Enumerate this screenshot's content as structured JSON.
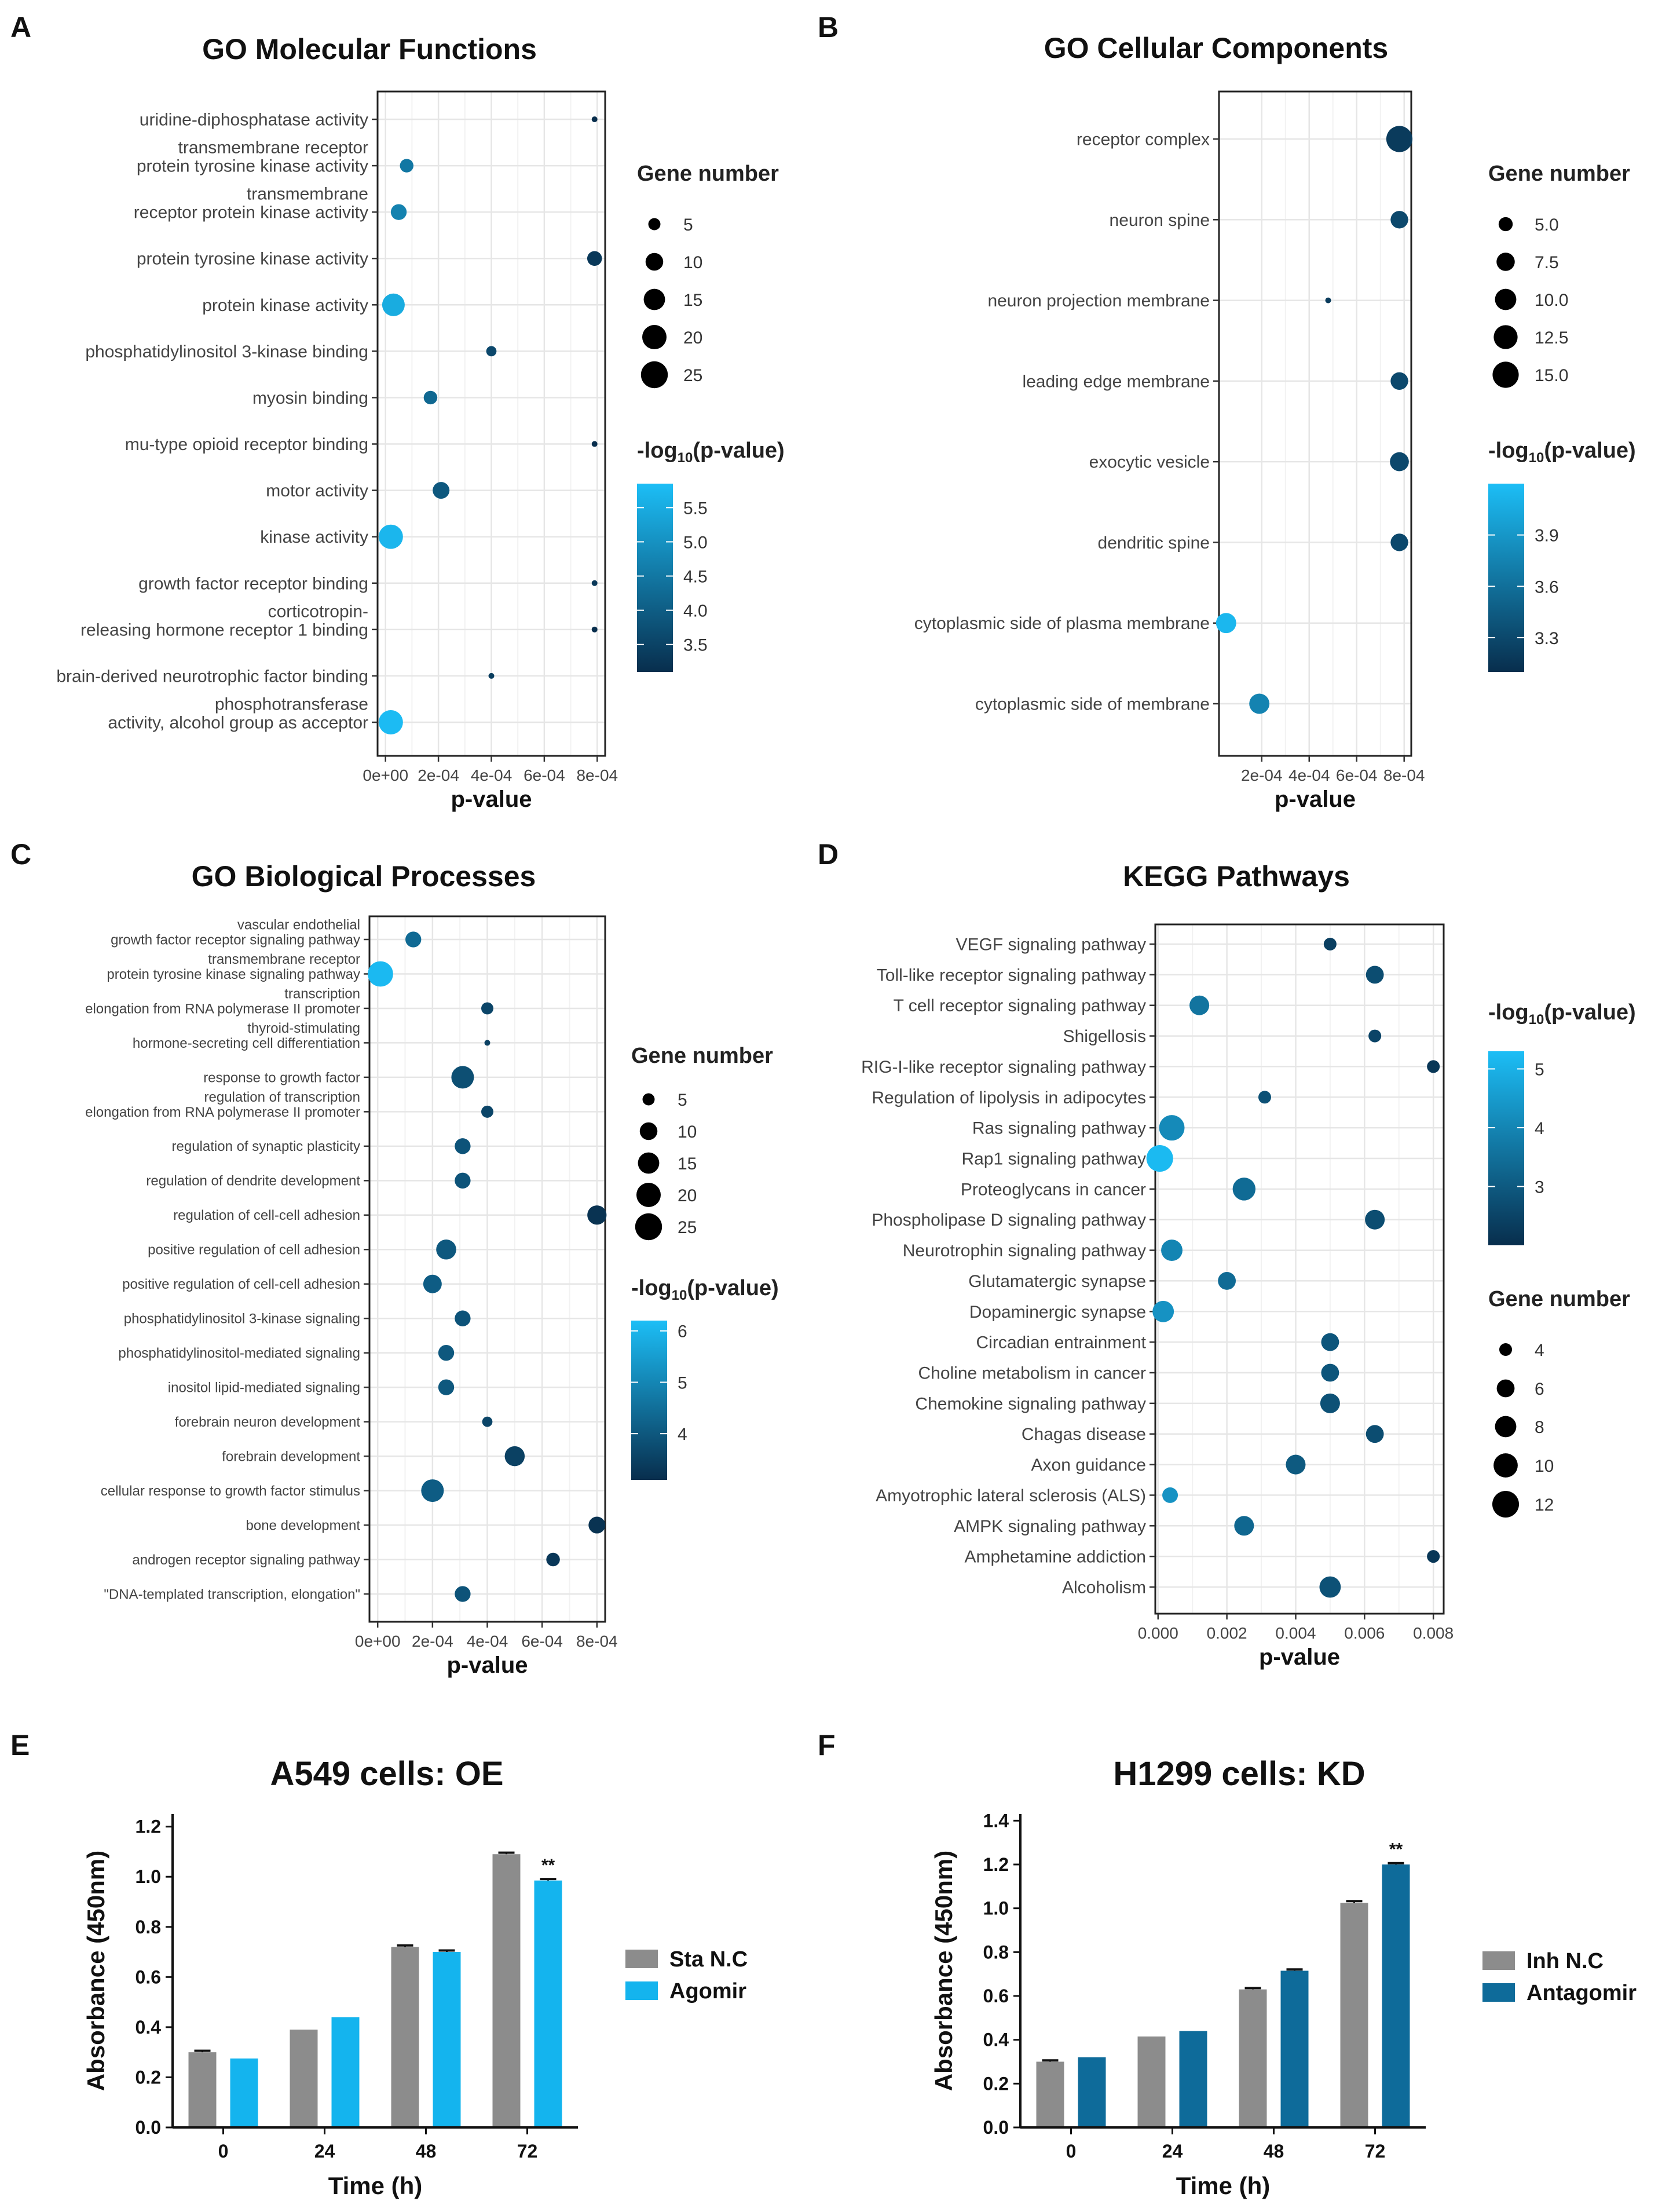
{
  "figure": {
    "panel_letters": [
      "A",
      "B",
      "C",
      "D",
      "E",
      "F"
    ]
  },
  "chart_data": [
    {
      "panel": "A",
      "type": "scatter",
      "title": "GO Molecular Functions",
      "xlabel": "p-value",
      "ylabel": "",
      "x_ticks": [
        "0e+00",
        "2e-04",
        "4e-04",
        "6e-04",
        "8e-04"
      ],
      "x_tick_values": [
        0,
        0.0002,
        0.0004,
        0.0006,
        0.0008
      ],
      "xlim": [
        -3e-05,
        0.00083
      ],
      "grid": true,
      "size_legend": {
        "title": "Gene number",
        "values": [
          5,
          10,
          15,
          20,
          25
        ]
      },
      "color_legend": {
        "title_main": "-log",
        "title_sub": "10",
        "title_tail": "(p-value)",
        "values": [
          5.5,
          5.0,
          4.5,
          4.0,
          3.5
        ],
        "range": [
          3.1,
          5.85
        ],
        "labels": [
          "5.5",
          "5.0",
          "4.5",
          "4.0",
          "3.5"
        ]
      },
      "size_range": [
        3,
        27
      ],
      "categories": [
        "uridine-diphosphatase activity",
        "transmembrane receptor protein tyrosine kinase activity",
        "transmembrane receptor protein kinase activity",
        "protein tyrosine kinase activity",
        "protein kinase activity",
        "phosphatidylinositol 3-kinase binding",
        "myosin binding",
        "mu-type opioid receptor binding",
        "motor activity",
        "kinase activity",
        "growth factor receptor binding",
        "corticotropin-releasing hormone receptor 1 binding",
        "brain-derived neurotrophic factor binding",
        "phosphotransferase activity, alcohol group as acceptor"
      ],
      "category_lines": [
        [
          "uridine-diphosphatase activity"
        ],
        [
          "transmembrane receptor",
          "protein tyrosine kinase activity"
        ],
        [
          "transmembrane",
          "receptor protein kinase activity"
        ],
        [
          "protein tyrosine kinase activity"
        ],
        [
          "protein kinase activity"
        ],
        [
          "phosphatidylinositol 3-kinase binding"
        ],
        [
          "myosin binding"
        ],
        [
          "mu-type opioid receptor binding"
        ],
        [
          "motor activity"
        ],
        [
          "kinase activity"
        ],
        [
          "growth factor receptor binding"
        ],
        [
          "corticotropin-",
          "releasing hormone receptor 1 binding"
        ],
        [
          "brain-derived neurotrophic factor binding"
        ],
        [
          "phosphotransferase",
          "activity, alcohol group as acceptor"
        ]
      ],
      "x": [
        0.00079,
        8e-05,
        5e-05,
        0.00079,
        3e-05,
        0.0004,
        0.00017,
        0.00079,
        0.00021,
        2e-05,
        0.00079,
        0.00079,
        0.0004,
        2e-05
      ],
      "gene_number": [
        3,
        6,
        8,
        7,
        17,
        4,
        6,
        2,
        9,
        20,
        3,
        2,
        2,
        20
      ],
      "log_p": [
        3.1,
        4.5,
        4.7,
        3.3,
        5.5,
        3.6,
        4.2,
        3.1,
        3.9,
        5.7,
        3.3,
        3.1,
        3.4,
        5.8
      ]
    },
    {
      "panel": "B",
      "type": "scatter",
      "title": "GO Cellular Components",
      "xlabel": "p-value",
      "ylabel": "",
      "x_ticks": [
        "2e-04",
        "4e-04",
        "6e-04",
        "8e-04"
      ],
      "x_tick_values": [
        0.0002,
        0.0004,
        0.0006,
        0.0008
      ],
      "xlim": [
        2e-05,
        0.00083
      ],
      "grid": true,
      "size_legend": {
        "title": "Gene number",
        "values": [
          5.0,
          7.5,
          10.0,
          12.5,
          15.0
        ],
        "labels": [
          "5.0",
          "7.5",
          "10.0",
          "12.5",
          "15.0"
        ]
      },
      "color_legend": {
        "title_main": "-log",
        "title_sub": "10",
        "title_tail": "(p-value)",
        "values": [
          3.9,
          3.6,
          3.3
        ],
        "range": [
          3.1,
          4.2
        ],
        "labels": [
          "3.9",
          "3.6",
          "3.3"
        ]
      },
      "size_range": [
        3,
        17
      ],
      "categories": [
        "receptor complex",
        "neuron spine",
        "neuron projection membrane",
        "leading edge membrane",
        "exocytic vesicle",
        "dendritic spine",
        "cytoplasmic side of plasma membrane",
        "cytoplasmic side of membrane"
      ],
      "category_lines": [
        [
          "receptor complex"
        ],
        [
          "neuron spine"
        ],
        [
          "neuron projection membrane"
        ],
        [
          "leading edge membrane"
        ],
        [
          "exocytic vesicle"
        ],
        [
          "dendritic spine"
        ],
        [
          "cytoplasmic side of plasma membrane"
        ],
        [
          "cytoplasmic side of membrane"
        ]
      ],
      "x": [
        0.00078,
        0.00078,
        0.00048,
        0.00078,
        0.00078,
        0.00078,
        5e-05,
        0.00019
      ],
      "gene_number": [
        15,
        7,
        3,
        7,
        8,
        7,
        9,
        9
      ],
      "log_p": [
        3.2,
        3.3,
        3.2,
        3.3,
        3.3,
        3.3,
        4.15,
        3.75
      ]
    },
    {
      "panel": "C",
      "type": "scatter",
      "title": "GO Biological Processes",
      "xlabel": "p-value",
      "ylabel": "",
      "x_ticks": [
        "0e+00",
        "2e-04",
        "4e-04",
        "6e-04",
        "8e-04"
      ],
      "x_tick_values": [
        0,
        0.0002,
        0.0004,
        0.0006,
        0.0008
      ],
      "xlim": [
        -3e-05,
        0.00083
      ],
      "grid": true,
      "size_legend": {
        "title": "Gene number",
        "values": [
          5,
          10,
          15,
          20,
          25
        ]
      },
      "color_legend": {
        "title_main": "-log",
        "title_sub": "10",
        "title_tail": "(p-value)",
        "values": [
          6,
          5,
          4
        ],
        "range": [
          3.1,
          6.2
        ],
        "labels": [
          "6",
          "5",
          "4"
        ]
      },
      "size_range": [
        3,
        27
      ],
      "categories": [
        "vascular endothelial growth factor receptor signaling pathway",
        "transmembrane receptor protein tyrosine kinase signaling pathway",
        "transcription elongation from RNA polymerase II promoter",
        "thyroid-stimulating hormone-secreting cell differentiation",
        "response to growth factor",
        "regulation of transcription elongation from RNA polymerase II promoter",
        "regulation of synaptic plasticity",
        "regulation of dendrite development",
        "regulation of cell-cell adhesion",
        "positive regulation of cell adhesion",
        "positive regulation of cell-cell adhesion",
        "phosphatidylinositol 3-kinase signaling",
        "phosphatidylinositol-mediated signaling",
        "inositol lipid-mediated signaling",
        "forebrain neuron development",
        "forebrain development",
        "cellular response to growth factor stimulus",
        "bone development",
        "androgen receptor signaling pathway",
        "\"DNA-templated transcription, elongation\""
      ],
      "category_lines": [
        [
          "vascular endothelial",
          "growth factor receptor signaling pathway"
        ],
        [
          "transmembrane receptor",
          "protein tyrosine kinase signaling pathway"
        ],
        [
          "transcription",
          "elongation from RNA polymerase II promoter"
        ],
        [
          "thyroid-stimulating",
          "hormone-secreting cell differentiation"
        ],
        [
          "response to growth factor"
        ],
        [
          "regulation of transcription",
          "elongation from RNA polymerase II promoter"
        ],
        [
          "regulation of synaptic plasticity"
        ],
        [
          "regulation of dendrite development"
        ],
        [
          "regulation of cell-cell adhesion"
        ],
        [
          "positive regulation of cell adhesion"
        ],
        [
          "positive regulation of cell-cell adhesion"
        ],
        [
          "phosphatidylinositol 3-kinase signaling"
        ],
        [
          "phosphatidylinositol-mediated signaling"
        ],
        [
          "inositol lipid-mediated signaling"
        ],
        [
          "forebrain neuron development"
        ],
        [
          "forebrain development"
        ],
        [
          "cellular response to growth factor stimulus"
        ],
        [
          "bone development"
        ],
        [
          "androgen receptor signaling pathway"
        ],
        [
          "\"DNA-templated transcription, elongation\""
        ]
      ],
      "x": [
        0.00013,
        1e-05,
        0.0004,
        0.0004,
        0.00031,
        0.0004,
        0.00031,
        0.00031,
        0.0008,
        0.00025,
        0.0002,
        0.00031,
        0.00025,
        0.00025,
        0.0004,
        0.0005,
        0.0002,
        0.0008,
        0.00064,
        0.00031
      ],
      "gene_number": [
        8,
        22,
        5,
        2,
        17,
        5,
        8,
        8,
        12,
        13,
        11,
        8,
        8,
        8,
        4,
        13,
        17,
        9,
        6,
        8
      ],
      "log_p": [
        4.4,
        6.1,
        3.6,
        3.5,
        3.8,
        3.6,
        3.9,
        3.9,
        3.2,
        4.0,
        4.1,
        3.9,
        4.0,
        4.0,
        3.6,
        3.5,
        4.1,
        3.2,
        3.3,
        3.9
      ]
    },
    {
      "panel": "D",
      "type": "scatter",
      "title": "KEGG Pathways",
      "xlabel": "p-value",
      "ylabel": "",
      "x_ticks": [
        "0.000",
        "0.002",
        "0.004",
        "0.006",
        "0.008"
      ],
      "x_tick_values": [
        0,
        0.002,
        0.004,
        0.006,
        0.008
      ],
      "xlim": [
        -8e-05,
        0.0083
      ],
      "grid": true,
      "size_legend": {
        "title": "Gene number",
        "values": [
          4,
          6,
          8,
          10,
          12
        ]
      },
      "color_legend": {
        "title_main": "-log",
        "title_sub": "10",
        "title_tail": "(p-value)",
        "values": [
          5,
          4,
          3
        ],
        "range": [
          2.0,
          5.3
        ],
        "labels": [
          "5",
          "4",
          "3"
        ]
      },
      "size_range": [
        3,
        13
      ],
      "categories": [
        "VEGF signaling pathway",
        "Toll-like receptor signaling pathway",
        "T cell receptor signaling pathway",
        "Shigellosis",
        "RIG-I-like receptor signaling pathway",
        "Regulation of lipolysis in adipocytes",
        "Ras signaling pathway",
        "Rap1 signaling pathway",
        "Proteoglycans in cancer",
        "Phospholipase D signaling pathway",
        "Neurotrophin signaling pathway",
        "Glutamatergic synapse",
        "Dopaminergic synapse",
        "Circadian entrainment",
        "Choline metabolism in cancer",
        "Chemokine signaling pathway",
        "Chagas disease",
        "Axon guidance",
        "Amyotrophic lateral sclerosis (ALS)",
        "AMPK signaling pathway",
        "Amphetamine addiction",
        "Alcoholism"
      ],
      "category_lines": [
        [
          "VEGF signaling pathway"
        ],
        [
          "Toll-like receptor signaling pathway"
        ],
        [
          "T cell receptor signaling pathway"
        ],
        [
          "Shigellosis"
        ],
        [
          "RIG-I-like receptor signaling pathway"
        ],
        [
          "Regulation of lipolysis in adipocytes"
        ],
        [
          "Ras signaling pathway"
        ],
        [
          "Rap1 signaling pathway"
        ],
        [
          "Proteoglycans in cancer"
        ],
        [
          "Phospholipase D signaling pathway"
        ],
        [
          "Neurotrophin signaling pathway"
        ],
        [
          "Glutamatergic synapse"
        ],
        [
          "Dopaminergic synapse"
        ],
        [
          "Circadian entrainment"
        ],
        [
          "Choline metabolism in cancer"
        ],
        [
          "Chemokine signaling pathway"
        ],
        [
          "Chagas disease"
        ],
        [
          "Axon guidance"
        ],
        [
          "Amyotrophic lateral sclerosis (ALS)"
        ],
        [
          "AMPK signaling pathway"
        ],
        [
          "Amphetamine addiction"
        ],
        [
          "Alcoholism"
        ]
      ],
      "x": [
        0.005,
        0.0063,
        0.0012,
        0.0063,
        0.008,
        0.0031,
        0.0004,
        5e-05,
        0.0025,
        0.0063,
        0.0004,
        0.002,
        0.00015,
        0.005,
        0.005,
        0.005,
        0.0063,
        0.004,
        0.00035,
        0.0025,
        0.008,
        0.005
      ],
      "gene_number": [
        4,
        6,
        7,
        4,
        4,
        4,
        11,
        12,
        9,
        7,
        8,
        6,
        8,
        6,
        6,
        7,
        6,
        7,
        5,
        7,
        4,
        8
      ],
      "log_p": [
        2.4,
        2.7,
        3.6,
        2.5,
        2.2,
        2.8,
        4.1,
        5.2,
        3.4,
        2.7,
        4.0,
        3.4,
        4.3,
        2.9,
        2.9,
        2.8,
        2.7,
        3.0,
        4.3,
        3.3,
        2.2,
        2.8
      ]
    },
    {
      "panel": "E",
      "type": "bar",
      "title": "A549 cells: OE",
      "xlabel": "Time (h)",
      "ylabel": "Absorbance (450nm)",
      "categories": [
        "0",
        "24",
        "48",
        "72"
      ],
      "ylim": [
        0,
        1.25
      ],
      "y_ticks": [
        "0.0",
        "0.2",
        "0.4",
        "0.6",
        "0.8",
        "1.0",
        "1.2"
      ],
      "y_tick_values": [
        0,
        0.2,
        0.4,
        0.6,
        0.8,
        1.0,
        1.2
      ],
      "grid": false,
      "legend_position": "right",
      "series": [
        {
          "name": "Sta N.C",
          "color": "#8c8c8c",
          "values": [
            0.3,
            0.39,
            0.72,
            1.09
          ],
          "errors": [
            0.006,
            0.0,
            0.006,
            0.006
          ]
        },
        {
          "name": "Agomir",
          "color": "#14b4ee",
          "values": [
            0.275,
            0.44,
            0.7,
            0.985
          ],
          "errors": [
            0.0,
            0.0,
            0.006,
            0.006
          ]
        }
      ],
      "annotations": [
        {
          "text": "**",
          "category": "72",
          "series": 1
        }
      ]
    },
    {
      "panel": "F",
      "type": "bar",
      "title": "H1299 cells: KD",
      "xlabel": "Time (h)",
      "ylabel": "Absorbance (450nm)",
      "categories": [
        "0",
        "24",
        "48",
        "72"
      ],
      "ylim": [
        0,
        1.43
      ],
      "y_ticks": [
        "0.0",
        "0.2",
        "0.4",
        "0.6",
        "0.8",
        "1.0",
        "1.2",
        "1.4"
      ],
      "y_tick_values": [
        0,
        0.2,
        0.4,
        0.6,
        0.8,
        1.0,
        1.2,
        1.4
      ],
      "grid": false,
      "legend_position": "right",
      "series": [
        {
          "name": "Inh N.C",
          "color": "#8c8c8c",
          "values": [
            0.3,
            0.415,
            0.63,
            1.025
          ],
          "errors": [
            0.006,
            0.0,
            0.006,
            0.008
          ]
        },
        {
          "name": "Antagomir",
          "color": "#0e6b9a",
          "values": [
            0.32,
            0.44,
            0.715,
            1.2
          ],
          "errors": [
            0.0,
            0.0,
            0.006,
            0.006
          ]
        }
      ],
      "annotations": [
        {
          "text": "**",
          "category": "72",
          "series": 1
        }
      ]
    }
  ]
}
